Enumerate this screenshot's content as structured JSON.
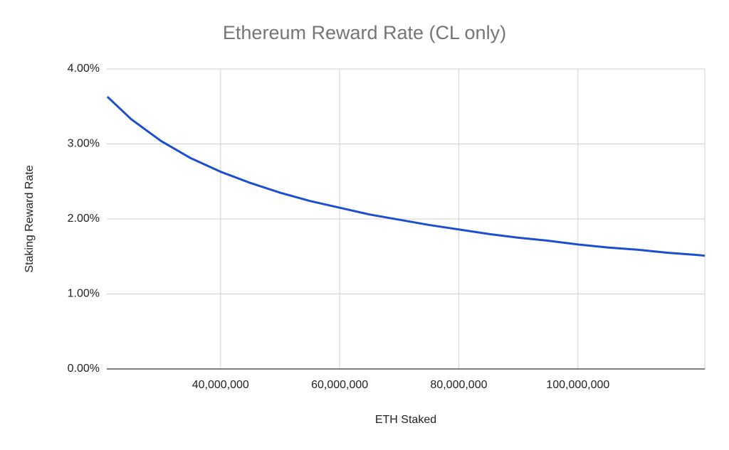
{
  "chart_data": {
    "type": "line",
    "title": "Ethereum Reward Rate (CL only)",
    "x_label": "ETH Staked",
    "y_label": "Staking Reward Rate",
    "x": [
      21000000,
      25000000,
      30000000,
      35000000,
      40000000,
      45000000,
      50000000,
      55000000,
      60000000,
      65000000,
      70000000,
      75000000,
      80000000,
      85000000,
      90000000,
      95000000,
      100000000,
      105000000,
      110000000,
      115000000,
      120000000,
      121300000
    ],
    "series": [
      {
        "name": "Staking Reward Rate",
        "color": "#1c4fd0",
        "values": [
          3.63,
          3.33,
          3.04,
          2.81,
          2.63,
          2.48,
          2.35,
          2.24,
          2.15,
          2.06,
          1.99,
          1.92,
          1.86,
          1.8,
          1.75,
          1.71,
          1.66,
          1.62,
          1.59,
          1.55,
          1.52,
          1.51
        ]
      }
    ],
    "xlim": [
      20900000,
      121300000
    ],
    "xticks": [
      {
        "value": 40000000,
        "label": "40,000,000"
      },
      {
        "value": 60000000,
        "label": "60,000,000"
      },
      {
        "value": 80000000,
        "label": "80,000,000"
      },
      {
        "value": 100000000,
        "label": "100,000,000"
      }
    ],
    "ylim": [
      0,
      4
    ],
    "yticks": [
      {
        "value": 0,
        "label": "0.00%"
      },
      {
        "value": 1,
        "label": "1.00%"
      },
      {
        "value": 2,
        "label": "2.00%"
      },
      {
        "value": 3,
        "label": "3.00%"
      },
      {
        "value": 4,
        "label": "4.00%"
      }
    ],
    "grid": true
  }
}
